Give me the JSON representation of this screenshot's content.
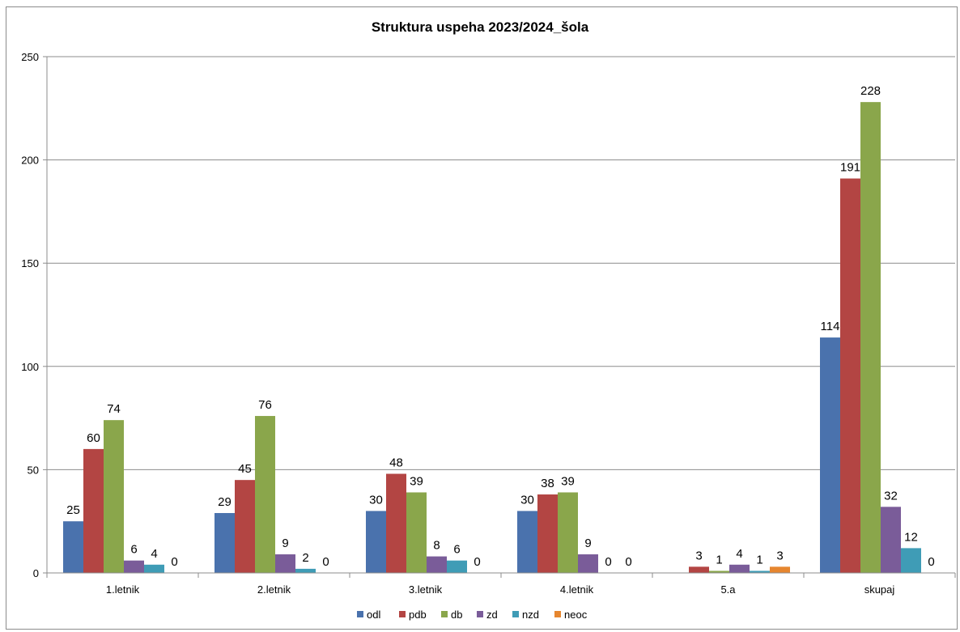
{
  "chart_data": {
    "type": "bar",
    "title": "Struktura uspeha 2023/2024_šola",
    "xlabel": "",
    "ylabel": "",
    "ylim": [
      0,
      250
    ],
    "yticks": [
      0,
      50,
      100,
      150,
      200,
      250
    ],
    "grid": true,
    "legend_position": "bottom",
    "categories": [
      "1.letnik",
      "2.letnik",
      "3.letnik",
      "4.letnik",
      "5.a",
      "skupaj"
    ],
    "series": [
      {
        "name": "odl",
        "color": "#4a72ad",
        "values": [
          25,
          29,
          30,
          30,
          null,
          114
        ],
        "labels": [
          "25",
          "29",
          "30",
          "30",
          "",
          "114"
        ]
      },
      {
        "name": "pdb",
        "color": "#b34543",
        "values": [
          60,
          45,
          48,
          38,
          3,
          191
        ],
        "labels": [
          "60",
          "45",
          "48",
          "38",
          "3",
          "191"
        ]
      },
      {
        "name": "db",
        "color": "#8aa64b",
        "values": [
          74,
          76,
          39,
          39,
          1,
          228
        ],
        "labels": [
          "74",
          "76",
          "39",
          "39",
          "1",
          "228"
        ]
      },
      {
        "name": "zd",
        "color": "#7a5c99",
        "values": [
          6,
          9,
          8,
          9,
          4,
          32
        ],
        "labels": [
          "6",
          "9",
          "8",
          "9",
          "4",
          "32"
        ]
      },
      {
        "name": "nzd",
        "color": "#3f9cb6",
        "values": [
          4,
          2,
          6,
          0,
          1,
          12
        ],
        "labels": [
          "4",
          "2",
          "6",
          "0",
          "1",
          "12"
        ]
      },
      {
        "name": "neoc",
        "color": "#e6862f",
        "values": [
          0,
          0,
          0,
          0,
          3,
          0
        ],
        "labels": [
          "0",
          "0",
          "0",
          "0",
          "3",
          "0"
        ]
      }
    ]
  }
}
